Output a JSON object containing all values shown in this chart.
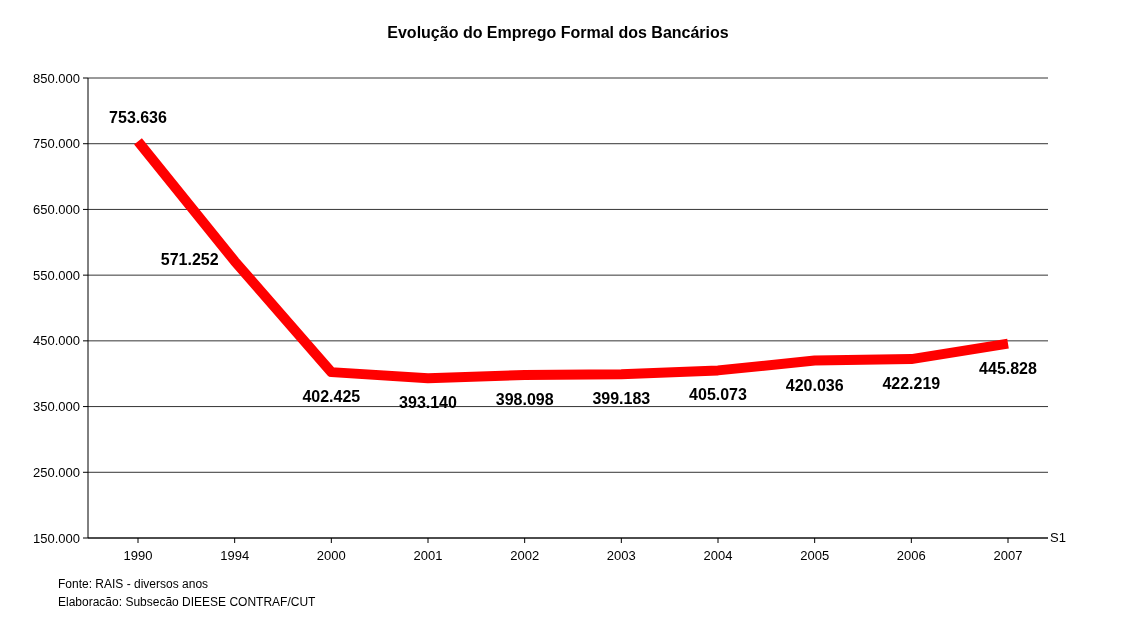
{
  "chart_data": {
    "type": "line",
    "title": "Evolução do Emprego Formal dos Bancários",
    "categories": [
      "1990",
      "1994",
      "2000",
      "2001",
      "2002",
      "2003",
      "2004",
      "2005",
      "2006",
      "2007"
    ],
    "series": [
      {
        "name": "S1",
        "color": "#ff0000",
        "values": [
          753636,
          571252,
          402425,
          393140,
          398098,
          399183,
          405073,
          420036,
          422219,
          445828
        ],
        "value_labels": [
          "753.636",
          "571.252",
          "402.425",
          "393.140",
          "398.098",
          "399.183",
          "405.073",
          "420.036",
          "422.219",
          "445.828"
        ]
      }
    ],
    "ylim": [
      150000,
      850000
    ],
    "yticks": [
      {
        "value": 150000,
        "label": "150.000"
      },
      {
        "value": 250000,
        "label": "250.000"
      },
      {
        "value": 350000,
        "label": "350.000"
      },
      {
        "value": 450000,
        "label": "450.000"
      },
      {
        "value": 550000,
        "label": "550.000"
      },
      {
        "value": 650000,
        "label": "650.000"
      },
      {
        "value": 750000,
        "label": "750.000"
      },
      {
        "value": 850000,
        "label": "850.000"
      }
    ],
    "grid": "y",
    "marker": "none",
    "line_style": "solid",
    "annotations": [
      "Fonte: RAIS - diversos anos",
      "Elaboracão: Subsecão DIEESE CONTRAF/CUT"
    ]
  }
}
